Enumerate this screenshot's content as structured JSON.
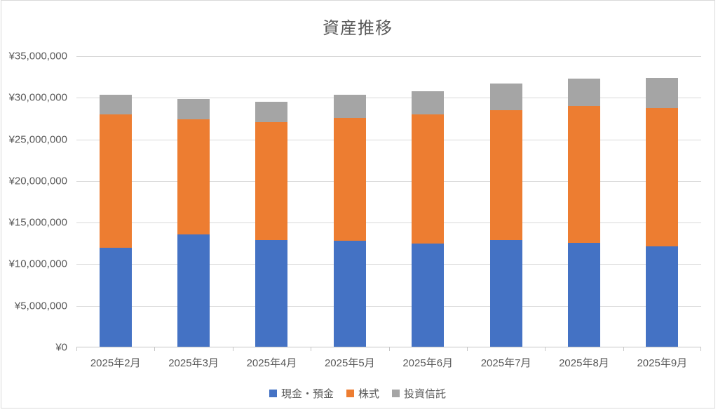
{
  "chart_data": {
    "type": "bar",
    "stacked": true,
    "title": "資産推移",
    "categories": [
      "2025年2月",
      "2025年3月",
      "2025年4月",
      "2025年5月",
      "2025年6月",
      "2025年7月",
      "2025年8月",
      "2025年9月"
    ],
    "series": [
      {
        "key": "cash",
        "name": "現金・預金",
        "color": "#4472C4",
        "values": [
          11900000,
          13500000,
          12800000,
          12700000,
          12400000,
          12800000,
          12500000,
          12100000
        ]
      },
      {
        "key": "stocks",
        "name": "株式",
        "color": "#ED7D31",
        "values": [
          16000000,
          13800000,
          14200000,
          14800000,
          15500000,
          15600000,
          16400000,
          16600000
        ]
      },
      {
        "key": "funds",
        "name": "投資信託",
        "color": "#A5A5A5",
        "values": [
          2400000,
          2500000,
          2400000,
          2800000,
          2800000,
          3200000,
          3300000,
          3600000
        ]
      }
    ],
    "xlabel": "",
    "ylabel": "",
    "ylim": [
      0,
      35000000
    ],
    "ytick_interval": 5000000,
    "ytick_labels_top_down": [
      "¥35,000,000",
      "¥30,000,000",
      "¥25,000,000",
      "¥20,000,000",
      "¥15,000,000",
      "¥10,000,000",
      "¥5,000,000",
      "¥0"
    ],
    "grid": true,
    "legend_position": "bottom",
    "colors": {
      "grid": "#d9d9d9",
      "axis": "#c6c6c6",
      "text": "#595959",
      "background": "#ffffff",
      "border": "#d9d9d9"
    }
  }
}
